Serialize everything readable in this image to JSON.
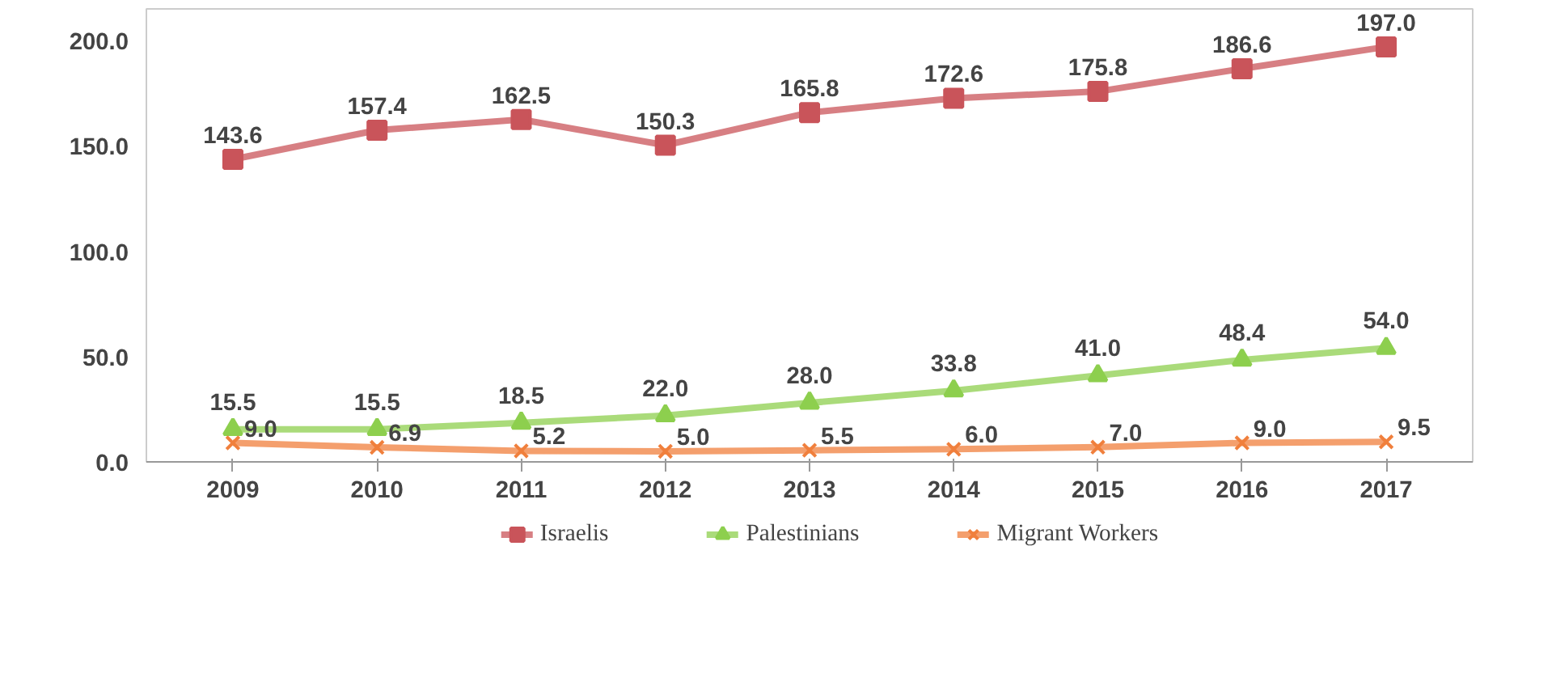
{
  "chart_data": {
    "type": "line",
    "categories": [
      "2009",
      "2010",
      "2011",
      "2012",
      "2013",
      "2014",
      "2015",
      "2016",
      "2017"
    ],
    "series": [
      {
        "name": "Israelis",
        "color": "#c9545a",
        "marker": "square",
        "values": [
          143.6,
          157.4,
          162.5,
          150.3,
          165.8,
          172.6,
          175.8,
          186.6,
          197.0
        ],
        "value_labels": [
          "143.6",
          "157.4",
          "162.5",
          "150.3",
          "165.8",
          "172.6",
          "175.8",
          "186.6",
          "197.0"
        ]
      },
      {
        "name": "Palestinians",
        "color": "#8dcf4e",
        "marker": "triangle",
        "values": [
          15.5,
          15.5,
          18.5,
          22.0,
          28.0,
          33.8,
          41.0,
          48.4,
          54.0
        ],
        "value_labels": [
          "15.5",
          "15.5",
          "18.5",
          "22.0",
          "28.0",
          "33.8",
          "41.0",
          "48.4",
          "54.0"
        ]
      },
      {
        "name": "Migrant Workers",
        "color": "#f07f3c",
        "marker": "cross",
        "values": [
          9.0,
          6.9,
          5.2,
          5.0,
          5.5,
          6.0,
          7.0,
          9.0,
          9.5
        ],
        "value_labels": [
          "9.0",
          "6.9",
          "5.2",
          "5.0",
          "5.5",
          "6.0",
          "7.0",
          "9.0",
          "9.5"
        ]
      }
    ],
    "ylim": [
      0,
      215
    ],
    "yticks": [
      {
        "value": 0,
        "label": "0.0"
      },
      {
        "value": 50,
        "label": "50.0"
      },
      {
        "value": 100,
        "label": "100.0"
      },
      {
        "value": 150,
        "label": "150.0"
      },
      {
        "value": 200,
        "label": "200.0"
      }
    ],
    "grid": false,
    "legend": "bottom",
    "line_style": "solid"
  }
}
